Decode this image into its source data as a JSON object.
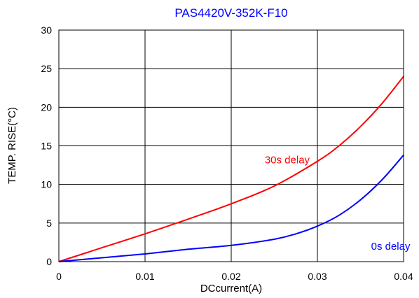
{
  "chart_data": {
    "type": "line",
    "title": "PAS4420V-352K-F10",
    "xlabel": "DCcurrent(A)",
    "ylabel": "TEMP. RISE(°C)",
    "xlim": [
      0,
      0.04
    ],
    "ylim": [
      0,
      30
    ],
    "x_ticks": [
      0,
      0.01,
      0.02,
      0.03,
      0.04
    ],
    "x_tick_labels": [
      "0",
      "0.01",
      "0.02",
      "0.03",
      "0.04"
    ],
    "y_ticks": [
      0,
      5,
      10,
      15,
      20,
      25,
      30
    ],
    "y_tick_labels": [
      "0",
      "5",
      "10",
      "15",
      "20",
      "25",
      "30"
    ],
    "grid": true,
    "legend": "none",
    "colors": {
      "title": "#0000ff",
      "grid": "#000000"
    },
    "series": [
      {
        "label": "30s delay",
        "color": "#ff0000",
        "label_at": [
          0.0265,
          13.2
        ],
        "x": [
          0,
          0.005,
          0.01,
          0.015,
          0.02,
          0.025,
          0.03,
          0.0325,
          0.035,
          0.0375,
          0.04
        ],
        "y": [
          0,
          1.8,
          3.6,
          5.5,
          7.5,
          9.8,
          13,
          15,
          17.5,
          20.5,
          24
        ]
      },
      {
        "label": "0s delay",
        "color": "#0000ff",
        "label_at": [
          0.0385,
          2.0
        ],
        "x": [
          0,
          0.005,
          0.01,
          0.015,
          0.02,
          0.025,
          0.0275,
          0.03,
          0.0325,
          0.035,
          0.0375,
          0.04
        ],
        "y": [
          0,
          0.5,
          1.0,
          1.6,
          2.1,
          2.9,
          3.6,
          4.6,
          6.0,
          8.0,
          10.6,
          13.8
        ]
      }
    ]
  }
}
